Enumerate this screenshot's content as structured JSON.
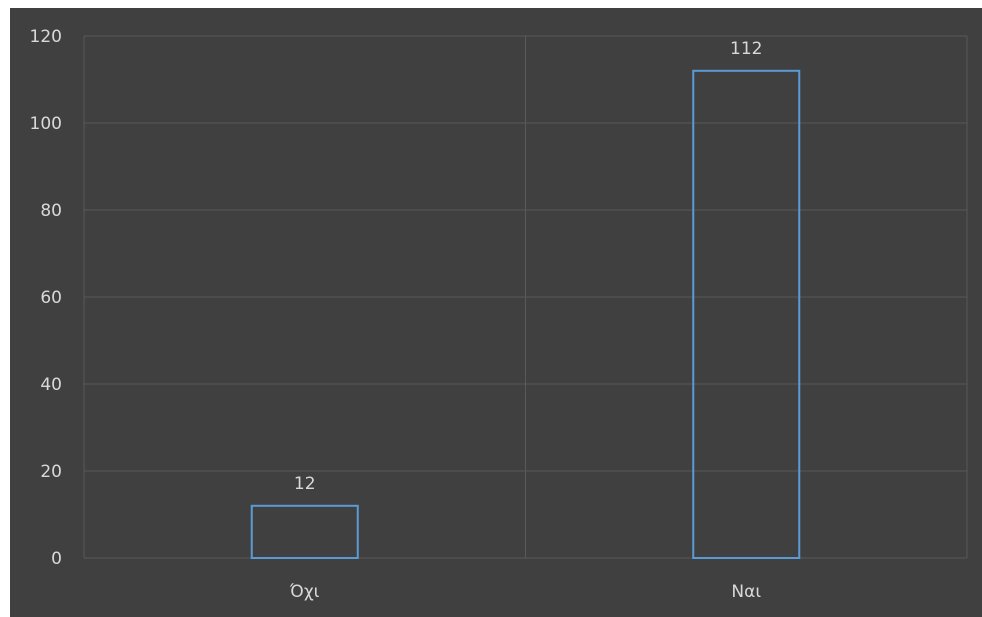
{
  "chart_data": {
    "type": "bar",
    "categories": [
      "Όχι",
      "Ναι"
    ],
    "values": [
      12,
      112
    ],
    "ylim": [
      0,
      120
    ],
    "yticks": [
      0,
      20,
      40,
      60,
      80,
      100,
      120
    ],
    "data_labels": [
      "12",
      "112"
    ],
    "grid": true,
    "colors": {
      "background": "#404040",
      "bar_outline": "#5b9bd5",
      "gridline": "#595959",
      "text": "#d9d9d9"
    }
  }
}
